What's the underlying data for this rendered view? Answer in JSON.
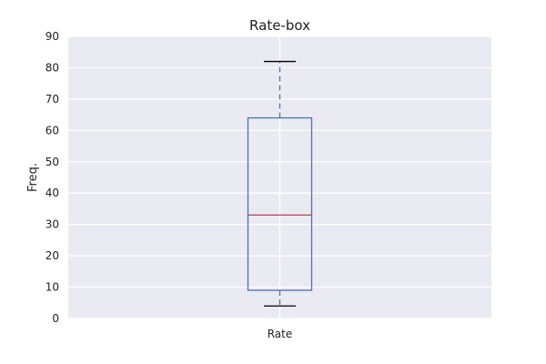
{
  "chart_data": {
    "type": "box",
    "title": "Rate-box",
    "xlabel": "",
    "ylabel": "Freq.",
    "ylim": [
      0,
      90
    ],
    "yticks": [
      0,
      10,
      20,
      30,
      40,
      50,
      60,
      70,
      80,
      90
    ],
    "categories": [
      "Rate"
    ],
    "boxes": [
      {
        "name": "Rate",
        "whisker_low": 4,
        "q1": 9,
        "median": 33,
        "q3": 64,
        "whisker_high": 82
      }
    ],
    "grid": true,
    "colors": {
      "background": "#eaeaf2",
      "grid": "#ffffff",
      "box": "#4c72b0",
      "median": "#c44e52",
      "caps": "#000000"
    }
  }
}
